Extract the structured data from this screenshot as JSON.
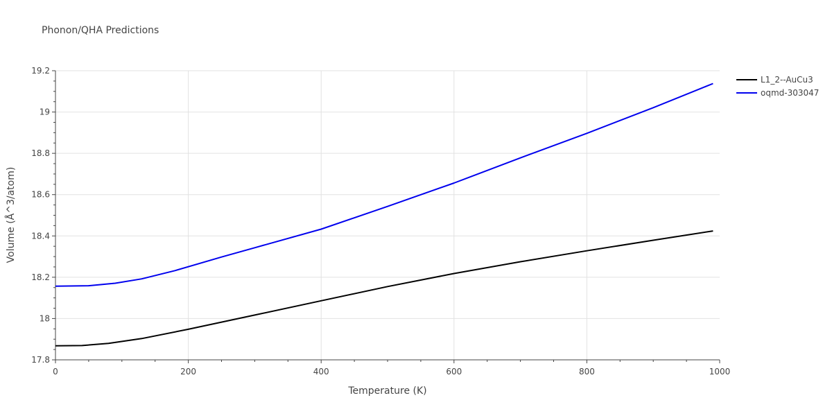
{
  "chart_data": {
    "type": "line",
    "title": "Phonon/QHA Predictions",
    "xlabel": "Temperature (K)",
    "ylabel": "Volume (Å^3/atom)",
    "xlim": [
      0,
      1000
    ],
    "ylim": [
      17.8,
      19.2
    ],
    "x_ticks": [
      0,
      200,
      400,
      600,
      800,
      1000
    ],
    "x_tick_labels": [
      "0",
      "200",
      "400",
      "600",
      "800",
      "1000"
    ],
    "y_ticks": [
      17.8,
      18.0,
      18.2,
      18.4,
      18.6,
      18.8,
      19.0,
      19.2
    ],
    "y_tick_labels": [
      "17.8",
      "18",
      "18.2",
      "18.4",
      "18.6",
      "18.8",
      "19",
      "19.2"
    ],
    "grid": true,
    "legend_position": "top-right",
    "series": [
      {
        "name": "L1_2--AuCu3",
        "color": "#000000",
        "x": [
          0,
          40,
          80,
          130,
          200,
          300,
          400,
          500,
          600,
          700,
          800,
          900,
          990
        ],
        "y": [
          17.868,
          17.869,
          17.88,
          17.903,
          17.948,
          18.017,
          18.086,
          18.155,
          18.218,
          18.275,
          18.328,
          18.379,
          18.424
        ]
      },
      {
        "name": "oqmd-303047",
        "color": "#0000ee",
        "x": [
          0,
          50,
          90,
          130,
          180,
          250,
          300,
          400,
          500,
          600,
          700,
          800,
          900,
          990
        ],
        "y": [
          18.157,
          18.159,
          18.171,
          18.192,
          18.232,
          18.298,
          18.343,
          18.433,
          18.543,
          18.656,
          18.778,
          18.897,
          19.021,
          19.138
        ]
      }
    ]
  }
}
